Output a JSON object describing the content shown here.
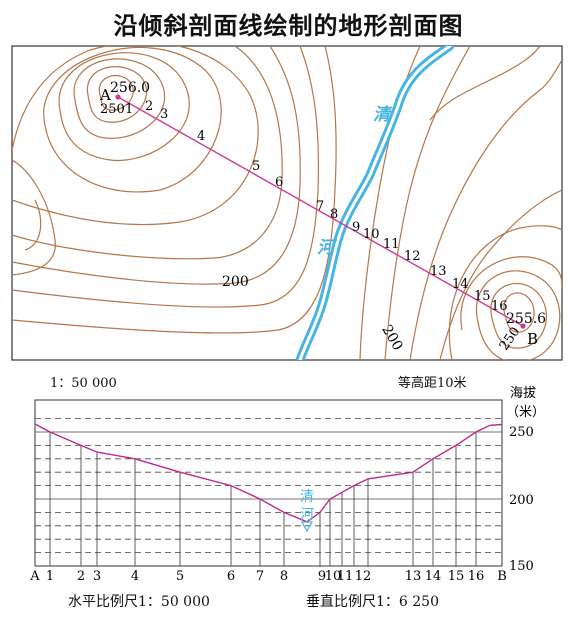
{
  "title": "沿倾斜剖面线绘制的地形剖面图",
  "map": {
    "scale": "1：50 000",
    "contour_interval": "等高距10米",
    "river_chars": [
      "清",
      "河"
    ],
    "point_a": "A",
    "point_b": "B",
    "elev_a": "256.0",
    "elev_b": "255.6",
    "contour_a": "250",
    "contour_b": "250",
    "contour_200_left": "200",
    "contour_200_right": "200",
    "crossing_labels": [
      "1",
      "2",
      "3",
      "4",
      "5",
      "6",
      "7",
      "8",
      "9",
      "10",
      "11",
      "12",
      "13",
      "14",
      "15",
      "16"
    ]
  },
  "profile": {
    "axis_title": "海拔",
    "axis_unit": "（米）",
    "yticks": [
      "250",
      "200",
      "150"
    ],
    "river_chars": [
      "清",
      "河"
    ],
    "xlabels": [
      "A",
      "1",
      "2",
      "3",
      "4",
      "5",
      "6",
      "7",
      "8",
      "9",
      "10",
      "11",
      "12",
      "13",
      "14",
      "15",
      "16",
      "B"
    ],
    "horizontal_scale": "水平比例尺1：50 000",
    "vertical_scale": "垂直比例尺1：6 250"
  },
  "colors": {
    "contour": "#b5764a",
    "river": "#47b4e3",
    "profile_line": "#c2268e",
    "section_line": "#d13a8f"
  }
}
